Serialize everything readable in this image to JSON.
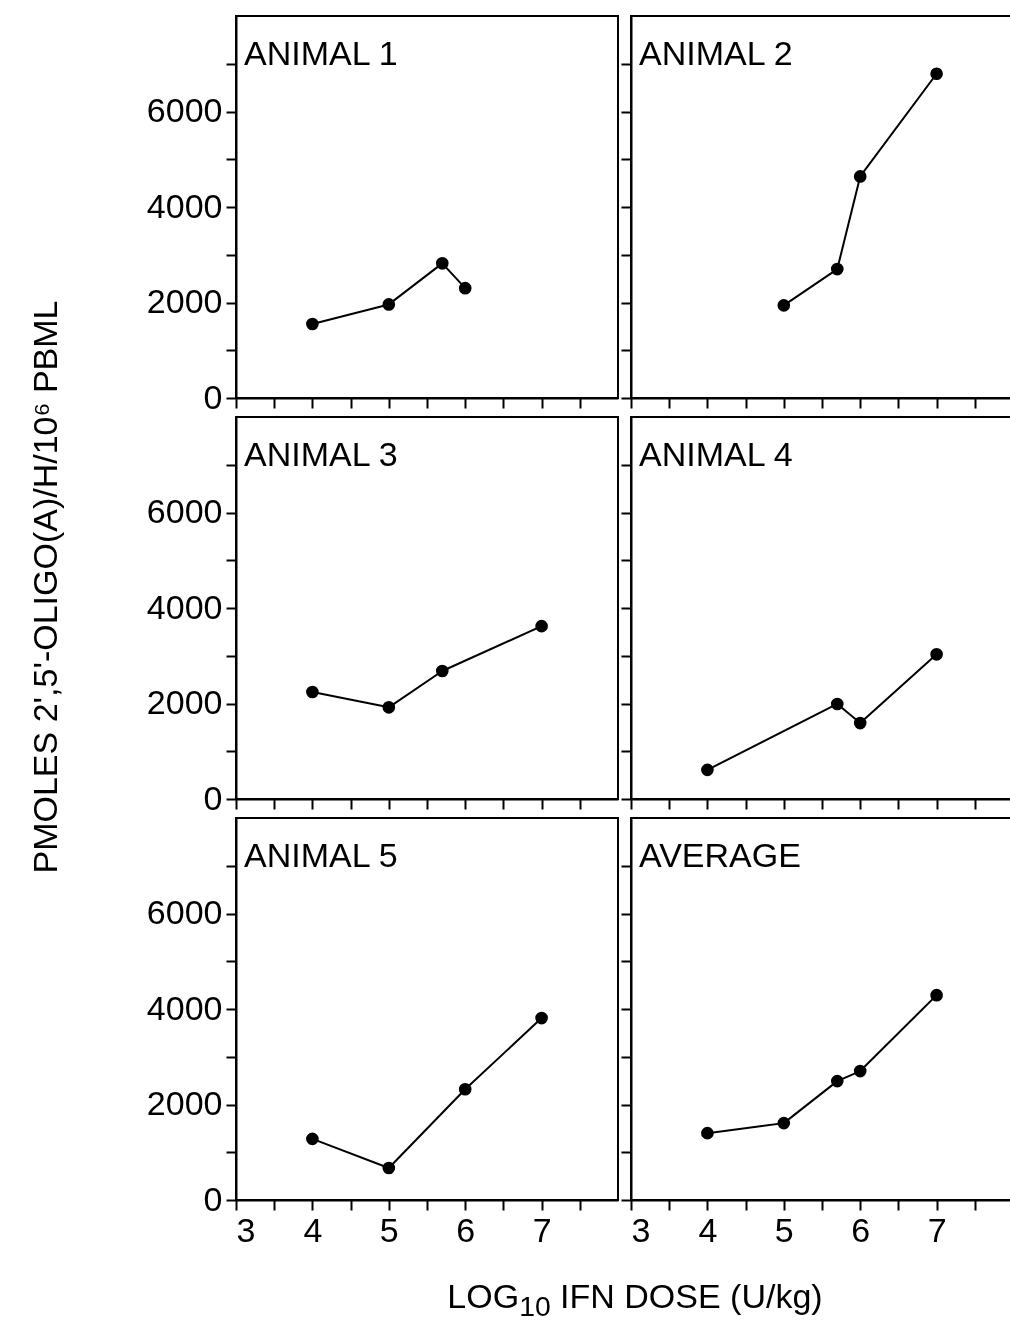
{
  "chart_data": [
    {
      "type": "line",
      "title": "ANIMAL 1",
      "x": [
        4,
        5,
        5.7,
        6
      ],
      "values": [
        1550,
        1960,
        2820,
        2300
      ],
      "color": "#000000",
      "marker": "circle",
      "line_style": "solid",
      "xlim": [
        3,
        8
      ],
      "ylim": [
        0,
        8000
      ],
      "xticks": [
        3,
        {
          "value": 3.5,
          "label": null
        },
        4,
        {
          "value": 4.5,
          "label": null
        },
        5,
        {
          "value": 5.5,
          "label": null
        },
        6,
        {
          "value": 6.5,
          "label": null
        },
        7,
        {
          "value": 7.5,
          "label": null
        }
      ],
      "yticks": [
        0,
        {
          "value": 1000,
          "label": null
        },
        2000,
        {
          "value": 3000,
          "label": null
        },
        4000,
        {
          "value": 5000,
          "label": null
        },
        6000,
        {
          "value": 7000,
          "label": null
        }
      ],
      "tick_labels": "y"
    },
    {
      "type": "line",
      "title": "ANIMAL 2",
      "x": [
        5,
        5.7,
        6,
        7
      ],
      "values": [
        1940,
        2700,
        4640,
        6790
      ],
      "color": "#000000",
      "marker": "circle",
      "line_style": "solid",
      "xlim": [
        3,
        8
      ],
      "ylim": [
        0,
        8000
      ],
      "xticks": [
        3,
        {
          "value": 3.5,
          "label": null
        },
        4,
        {
          "value": 4.5,
          "label": null
        },
        5,
        {
          "value": 5.5,
          "label": null
        },
        6,
        {
          "value": 6.5,
          "label": null
        },
        7,
        {
          "value": 7.5,
          "label": null
        }
      ],
      "yticks": [
        0,
        {
          "value": 1000,
          "label": null
        },
        2000,
        {
          "value": 3000,
          "label": null
        },
        4000,
        {
          "value": 5000,
          "label": null
        },
        6000,
        {
          "value": 7000,
          "label": null
        }
      ],
      "tick_labels": false
    },
    {
      "type": "line",
      "title": "ANIMAL 3",
      "ylabel": "PMOLES 2',5'-OLIGO(A)/H/10⁶ PBML",
      "x": [
        4,
        5,
        5.7,
        7
      ],
      "values": [
        2240,
        1920,
        2680,
        3620
      ],
      "color": "#000000",
      "marker": "circle",
      "line_style": "solid",
      "xlim": [
        3,
        8
      ],
      "ylim": [
        0,
        8000
      ],
      "xticks": [
        3,
        {
          "value": 3.5,
          "label": null
        },
        4,
        {
          "value": 4.5,
          "label": null
        },
        5,
        {
          "value": 5.5,
          "label": null
        },
        6,
        {
          "value": 6.5,
          "label": null
        },
        7,
        {
          "value": 7.5,
          "label": null
        }
      ],
      "yticks": [
        0,
        {
          "value": 1000,
          "label": null
        },
        2000,
        {
          "value": 3000,
          "label": null
        },
        4000,
        {
          "value": 5000,
          "label": null
        },
        6000,
        {
          "value": 7000,
          "label": null
        }
      ],
      "tick_labels": "y"
    },
    {
      "type": "line",
      "title": "ANIMAL 4",
      "x": [
        4,
        5.7,
        6,
        7
      ],
      "values": [
        610,
        1990,
        1590,
        3030
      ],
      "color": "#000000",
      "marker": "circle",
      "line_style": "solid",
      "xlim": [
        3,
        8
      ],
      "ylim": [
        0,
        8000
      ],
      "xticks": [
        3,
        {
          "value": 3.5,
          "label": null
        },
        4,
        {
          "value": 4.5,
          "label": null
        },
        5,
        {
          "value": 5.5,
          "label": null
        },
        6,
        {
          "value": 6.5,
          "label": null
        },
        7,
        {
          "value": 7.5,
          "label": null
        }
      ],
      "yticks": [
        0,
        {
          "value": 1000,
          "label": null
        },
        2000,
        {
          "value": 3000,
          "label": null
        },
        4000,
        {
          "value": 5000,
          "label": null
        },
        6000,
        {
          "value": 7000,
          "label": null
        }
      ],
      "tick_labels": false
    },
    {
      "type": "line",
      "title": "ANIMAL 5",
      "xlabel": "LOG$_{10}$ IFN DOSE (U/kg)",
      "x": [
        4,
        5,
        6,
        7
      ],
      "values": [
        1280,
        670,
        2320,
        3810
      ],
      "color": "#000000",
      "marker": "circle",
      "line_style": "solid",
      "xlim": [
        3,
        8
      ],
      "ylim": [
        0,
        8000
      ],
      "xticks": [
        3,
        {
          "value": 3.5,
          "label": null
        },
        4,
        {
          "value": 4.5,
          "label": null
        },
        5,
        {
          "value": 5.5,
          "label": null
        },
        6,
        {
          "value": 6.5,
          "label": null
        },
        7,
        {
          "value": 7.5,
          "label": null
        }
      ],
      "yticks": [
        0,
        {
          "value": 1000,
          "label": null
        },
        2000,
        {
          "value": 3000,
          "label": null
        },
        4000,
        {
          "value": 5000,
          "label": null
        },
        6000,
        {
          "value": 7000,
          "label": null
        }
      ]
    },
    {
      "type": "line",
      "title": "AVERAGE",
      "x": [
        4,
        5,
        5.7,
        6,
        7
      ],
      "values": [
        1400,
        1610,
        2490,
        2700,
        4290
      ],
      "color": "#000000",
      "marker": "circle",
      "line_style": "solid",
      "xlim": [
        3,
        8
      ],
      "ylim": [
        0,
        8000
      ],
      "xticks": [
        3,
        {
          "value": 3.5,
          "label": null
        },
        4,
        {
          "value": 4.5,
          "label": null
        },
        5,
        {
          "value": 5.5,
          "label": null
        },
        6,
        {
          "value": 6.5,
          "label": null
        },
        7,
        {
          "value": 7.5,
          "label": null
        }
      ],
      "yticks": [
        0,
        {
          "value": 1000,
          "label": null
        },
        2000,
        {
          "value": 3000,
          "label": null
        },
        4000,
        {
          "value": 5000,
          "label": null
        },
        6000,
        {
          "value": 7000,
          "label": null
        }
      ],
      "tick_labels": "x"
    }
  ]
}
